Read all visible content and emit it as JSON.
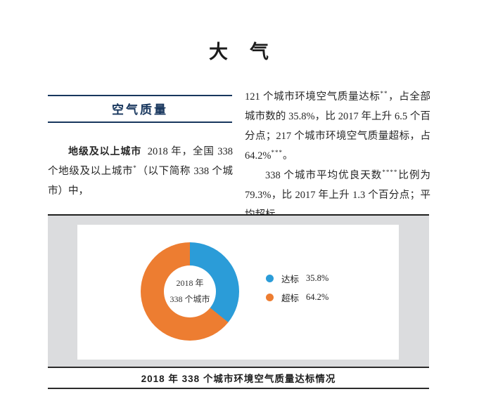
{
  "page_title": "大　气",
  "section": {
    "header": "空气质量"
  },
  "left_column": {
    "lead": "地级及以上城市",
    "text_before_sup": "2018 年，全国 338 个地级及以上城市",
    "sup": "*",
    "text_after_sup": "（以下简称 338 个城市）中，"
  },
  "right_column": {
    "p1_before_sup1": "121 个城市环境空气质量达标",
    "p1_sup1": "**",
    "p1_mid": "，占全部城市数的 35.8%，比 2017 年上升 6.5 个百分点；217 个城市环境空气质量超标，占 64.2%",
    "p1_sup2": "***",
    "p1_end": "。",
    "p2_before_sup": "338 个城市平均优良天数",
    "p2_sup": "****",
    "p2_after_sup": "比例为 79.3%，比 2017 年上升 1.3 个百分点；平均超标"
  },
  "chart_data": {
    "type": "pie",
    "subtype": "donut",
    "labels": [
      "达标",
      "超标"
    ],
    "values": [
      35.8,
      64.2
    ],
    "value_labels": [
      "35.8%",
      "64.2%"
    ],
    "colors": [
      "#2B9CD8",
      "#ED7D31"
    ],
    "start_angle_deg": 0,
    "direction": "clockwise",
    "center_label_line1": "2018 年",
    "center_label_line2": "338 个城市",
    "legend_position": "right",
    "caption": "2018 年 338 个城市环境空气质量达标情况",
    "panel_background": "#FFFFFF",
    "figure_background": "#DBDCDE"
  }
}
